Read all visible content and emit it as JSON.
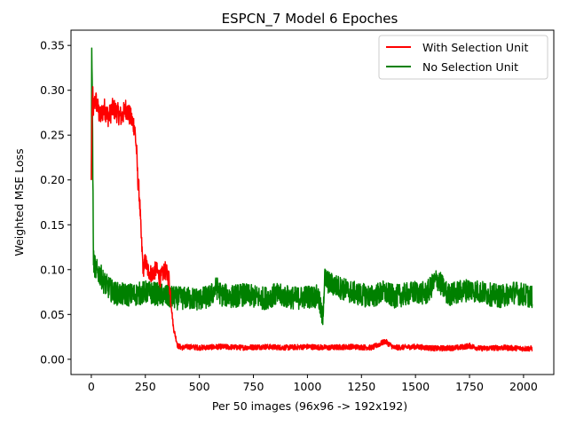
{
  "chart_data": {
    "type": "line",
    "title": "ESPCN_7 Model 6 Epoches",
    "xlabel": "Per 50 images (96x96 -> 192x192)",
    "ylabel": "Weighted MSE Loss",
    "xlim": [
      -94,
      2140
    ],
    "ylim": [
      -0.017,
      0.367
    ],
    "xticks": [
      0,
      250,
      500,
      750,
      1000,
      1250,
      1500,
      1750,
      2000
    ],
    "yticks": [
      0.0,
      0.05,
      0.1,
      0.15,
      0.2,
      0.25,
      0.3,
      0.35
    ],
    "xtick_labels": [
      "0",
      "250",
      "500",
      "750",
      "1000",
      "1250",
      "1500",
      "1750",
      "2000"
    ],
    "ytick_labels": [
      "0.00",
      "0.05",
      "0.10",
      "0.15",
      "0.20",
      "0.25",
      "0.30",
      "0.35"
    ],
    "grid": false,
    "legend_position": "top-right",
    "series": [
      {
        "name": "With Selection Unit",
        "color": "#ff0000",
        "x": [
          0,
          5,
          10,
          20,
          40,
          60,
          80,
          100,
          120,
          140,
          160,
          180,
          200,
          210,
          215,
          220,
          225,
          230,
          240,
          250,
          260,
          280,
          300,
          320,
          340,
          360,
          370,
          380,
          390,
          400,
          420,
          450,
          500,
          600,
          700,
          800,
          900,
          1000,
          1100,
          1200,
          1300,
          1360,
          1400,
          1500,
          1600,
          1700,
          1750,
          1800,
          1900,
          2000,
          2040
        ],
        "y": [
          0.2,
          0.3,
          0.28,
          0.29,
          0.27,
          0.28,
          0.27,
          0.28,
          0.275,
          0.27,
          0.28,
          0.27,
          0.26,
          0.23,
          0.2,
          0.19,
          0.17,
          0.14,
          0.1,
          0.11,
          0.1,
          0.095,
          0.1,
          0.09,
          0.1,
          0.09,
          0.06,
          0.035,
          0.025,
          0.015,
          0.013,
          0.014,
          0.013,
          0.014,
          0.013,
          0.014,
          0.013,
          0.014,
          0.013,
          0.014,
          0.013,
          0.02,
          0.013,
          0.014,
          0.012,
          0.013,
          0.015,
          0.012,
          0.013,
          0.012,
          0.012
        ]
      },
      {
        "name": "No Selection Unit",
        "color": "#008000",
        "x": [
          0,
          2,
          5,
          10,
          20,
          40,
          60,
          80,
          100,
          120,
          150,
          200,
          250,
          300,
          350,
          400,
          450,
          500,
          550,
          580,
          600,
          650,
          700,
          750,
          800,
          850,
          900,
          950,
          1000,
          1050,
          1070,
          1080,
          1100,
          1150,
          1200,
          1250,
          1300,
          1350,
          1400,
          1450,
          1500,
          1550,
          1600,
          1650,
          1700,
          1750,
          1800,
          1850,
          1900,
          1950,
          2000,
          2040
        ],
        "y": [
          0.2,
          0.347,
          0.28,
          0.11,
          0.1,
          0.095,
          0.085,
          0.08,
          0.075,
          0.073,
          0.072,
          0.072,
          0.075,
          0.073,
          0.07,
          0.068,
          0.068,
          0.067,
          0.07,
          0.08,
          0.072,
          0.07,
          0.072,
          0.07,
          0.068,
          0.072,
          0.07,
          0.068,
          0.07,
          0.07,
          0.045,
          0.09,
          0.085,
          0.08,
          0.075,
          0.072,
          0.07,
          0.075,
          0.07,
          0.072,
          0.075,
          0.073,
          0.09,
          0.072,
          0.075,
          0.078,
          0.075,
          0.072,
          0.07,
          0.075,
          0.072,
          0.07
        ]
      }
    ]
  }
}
